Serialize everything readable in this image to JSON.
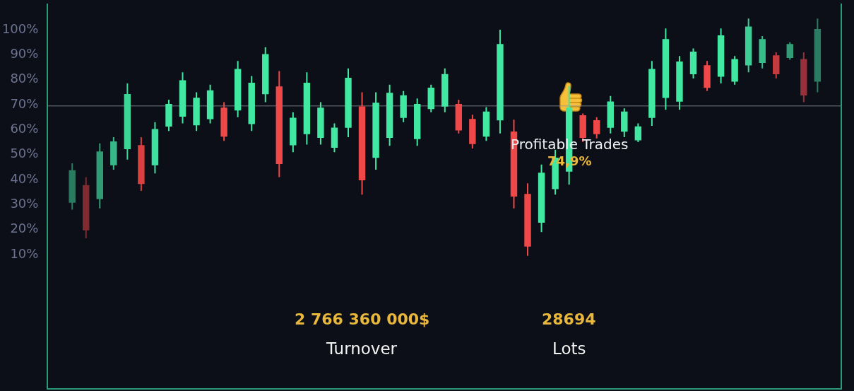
{
  "chart_data": {
    "type": "candlestick",
    "categories": [
      null,
      null,
      null,
      null,
      null,
      null,
      null,
      null,
      null,
      null,
      null,
      null,
      null,
      null,
      null,
      null,
      null,
      null,
      null,
      null,
      null,
      null,
      null,
      null,
      null,
      null,
      null,
      null,
      null,
      null,
      null,
      null,
      null,
      null,
      null,
      null,
      null,
      null,
      null,
      null,
      null,
      null,
      null,
      null,
      null,
      null,
      null,
      null,
      null,
      null,
      null,
      null,
      null,
      null,
      null
    ],
    "ohlc": [
      [
        30.5,
        46,
        27.5,
        43
      ],
      [
        37,
        40.5,
        16,
        19.5
      ],
      [
        32,
        54,
        28,
        50.5
      ],
      [
        45.5,
        56.5,
        43.5,
        54.5
      ],
      [
        52,
        78,
        47.5,
        73.5
      ],
      [
        53,
        56.5,
        35,
        38
      ],
      [
        45.5,
        62.5,
        42,
        59.5
      ],
      [
        61,
        71.5,
        59,
        69.5
      ],
      [
        65,
        82.5,
        62,
        79
      ],
      [
        61.5,
        74.5,
        59,
        72
      ],
      [
        64,
        77.5,
        62,
        75
      ],
      [
        68,
        70.5,
        55,
        57
      ],
      [
        67.5,
        87,
        64.5,
        83.5
      ],
      [
        62,
        81,
        59,
        78
      ],
      [
        74,
        92.5,
        70.5,
        89.5
      ],
      [
        76.5,
        83,
        40.5,
        46
      ],
      [
        53.5,
        66.5,
        50.5,
        64
      ],
      [
        58,
        82.5,
        53.5,
        78
      ],
      [
        56.5,
        70.5,
        53.5,
        68
      ],
      [
        52.5,
        62,
        50.5,
        60
      ],
      [
        60.5,
        84,
        56.5,
        80
      ],
      [
        68.5,
        74.5,
        33.5,
        39.5
      ],
      [
        48.5,
        74.5,
        43.5,
        70
      ],
      [
        56.5,
        77.5,
        53,
        74
      ],
      [
        64.5,
        75,
        62.5,
        73
      ],
      [
        56,
        72,
        53,
        69.5
      ],
      [
        68,
        77.5,
        66.5,
        76
      ],
      [
        69,
        84,
        66.5,
        81.5
      ],
      [
        69.5,
        71.5,
        58,
        59.5
      ],
      [
        63.5,
        65.5,
        52,
        54
      ],
      [
        57,
        68.5,
        55,
        66.5
      ],
      [
        63.5,
        99.5,
        58,
        93.5
      ],
      [
        58.5,
        63.5,
        28,
        33
      ],
      [
        33.5,
        38,
        9,
        13
      ],
      [
        22.5,
        45.5,
        18.5,
        42
      ],
      [
        36,
        51.5,
        33.5,
        48
      ],
      [
        43,
        77,
        37.5,
        68
      ],
      [
        65,
        66,
        54.5,
        56.5
      ],
      [
        63,
        64.5,
        56,
        58
      ],
      [
        60.5,
        73,
        58,
        70.5
      ],
      [
        59,
        68,
        56.5,
        66.5
      ],
      [
        55.5,
        62,
        54.5,
        60.5
      ],
      [
        64.5,
        87,
        61,
        83.5
      ],
      [
        72.5,
        100,
        67.5,
        95.5
      ],
      [
        71,
        89,
        67.5,
        86.5
      ],
      [
        82,
        92,
        80,
        90.5
      ],
      [
        85,
        87,
        75,
        76.5
      ],
      [
        81,
        100,
        78,
        97
      ],
      [
        79,
        89,
        77.5,
        87.5
      ],
      [
        85.5,
        104,
        82.5,
        100.5
      ],
      [
        86.5,
        97,
        84,
        95.5
      ],
      [
        89,
        90.5,
        80,
        82
      ],
      [
        88.5,
        94.5,
        87.5,
        93.5
      ],
      [
        87.5,
        90.5,
        70.5,
        73.5
      ],
      [
        79,
        104,
        74.5,
        99.5
      ]
    ],
    "colors": [
      "#2a7c60",
      "#7f2b30",
      "#2f9c74",
      "#38b888",
      "#3dd596",
      "#d9403f",
      "#3ee0a0",
      "#40e8a2",
      "#40e8a2",
      "#40e8a2",
      "#40e8a2",
      "#ef4848",
      "#40e8a2",
      "#40e8a2",
      "#40e8a2",
      "#ef4848",
      "#40e8a2",
      "#40e8a2",
      "#40e8a2",
      "#40e8a2",
      "#40e8a2",
      "#ef4848",
      "#40e8a2",
      "#40e8a2",
      "#40e8a2",
      "#40e8a2",
      "#40e8a2",
      "#40e8a2",
      "#ef4848",
      "#ef4848",
      "#40e8a2",
      "#40e8a2",
      "#ef4848",
      "#ef4848",
      "#40e8a2",
      "#40e8a2",
      "#40e8a2",
      "#ef4848",
      "#ef4848",
      "#40e8a2",
      "#40e8a2",
      "#40e8a2",
      "#40e8a2",
      "#40e8a2",
      "#40e8a2",
      "#40e8a2",
      "#ef4848",
      "#40e8a2",
      "#40e8a2",
      "#3bcf95",
      "#37bd89",
      "#c23c3f",
      "#309d76",
      "#98303a",
      "#2a7d62"
    ],
    "ylim": [
      -44,
      110
    ],
    "yticks": [
      {
        "value": 10,
        "label": "10%"
      },
      {
        "value": 20,
        "label": "20%"
      },
      {
        "value": 30,
        "label": "30%"
      },
      {
        "value": 40,
        "label": "40%"
      },
      {
        "value": 50,
        "label": "50%"
      },
      {
        "value": 60,
        "label": "60%"
      },
      {
        "value": 70,
        "label": "70%"
      },
      {
        "value": 80,
        "label": "80%"
      },
      {
        "value": 90,
        "label": "90%"
      },
      {
        "value": 100,
        "label": "100%"
      }
    ],
    "tick_labels": "y",
    "ref_lines": [
      {
        "axis": "y",
        "value": 69,
        "color": "#8c919c"
      }
    ],
    "annotations": [
      "Profitable Trades",
      "74,9%",
      "2 766 360 000$",
      "Turnover",
      "28694",
      "Lots"
    ]
  }
}
